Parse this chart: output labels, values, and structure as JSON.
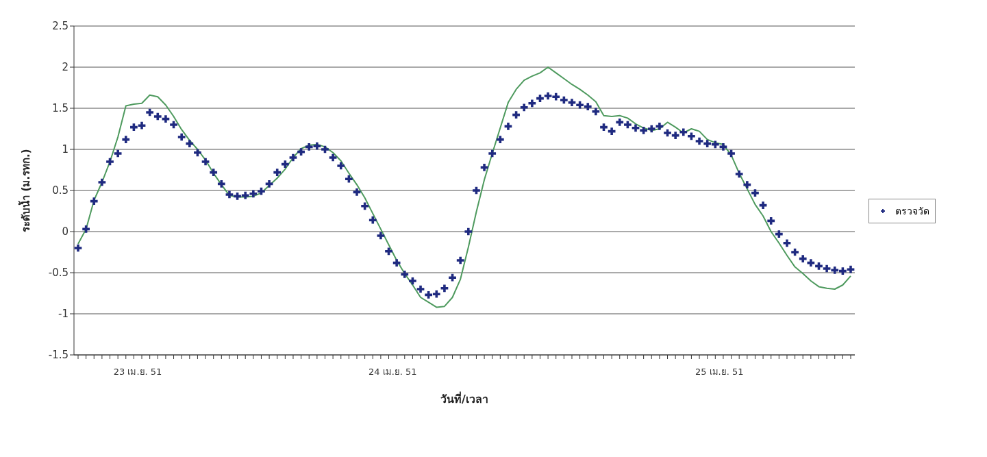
{
  "chart_data": {
    "type": "line",
    "xlabel": "วันที่/เวลา",
    "ylabel": "ระดับน้ำ (ม.รทก.)",
    "annotations": [
      "23 เม.ย. 51",
      "24 เม.ย. 51",
      "25 เม.ย. 51"
    ],
    "ylim": [
      -1.5,
      2.5
    ],
    "yticks": [
      -1.5,
      -1,
      -0.5,
      0,
      0.5,
      1,
      1.5,
      2,
      2.5
    ],
    "grid": "y",
    "legend": "right",
    "categories": [
      null,
      null,
      null,
      null,
      null,
      null,
      null,
      null,
      null,
      null,
      null,
      null,
      null,
      null,
      null,
      null,
      null,
      null,
      null,
      null,
      null,
      null,
      null,
      null,
      null,
      null,
      null,
      null,
      null,
      null,
      null,
      null,
      null,
      null,
      null,
      null,
      null,
      null,
      null,
      null,
      null,
      null,
      null,
      null,
      null,
      null,
      null,
      null,
      null,
      null,
      null,
      null,
      null,
      null,
      null,
      null,
      null,
      null,
      null,
      null,
      null,
      null,
      null,
      null,
      null,
      null,
      null,
      null,
      null,
      null,
      null,
      null,
      null,
      null,
      null,
      null,
      null,
      null,
      null,
      null,
      null,
      null,
      null,
      null,
      null,
      null,
      null,
      null,
      null,
      null,
      null,
      null,
      null,
      null,
      null,
      null,
      null,
      null
    ],
    "series": [
      {
        "type": "scatter",
        "name": "ตรวจวัด",
        "color": "#1f2a80",
        "marker": "cross",
        "values": [
          -0.2,
          0.03,
          0.37,
          0.6,
          0.85,
          0.95,
          1.12,
          1.27,
          1.29,
          1.45,
          1.4,
          1.37,
          1.3,
          1.15,
          1.07,
          0.96,
          0.85,
          0.72,
          0.58,
          0.45,
          0.43,
          0.44,
          0.46,
          0.49,
          0.58,
          0.72,
          0.82,
          0.9,
          0.97,
          1.03,
          1.04,
          1,
          0.9,
          0.8,
          0.64,
          0.48,
          0.31,
          0.14,
          -0.05,
          -0.24,
          -0.38,
          -0.52,
          -0.6,
          -0.7,
          -0.77,
          -0.76,
          -0.69,
          -0.56,
          -0.35,
          0,
          0.5,
          0.78,
          0.95,
          1.12,
          1.28,
          1.42,
          1.51,
          1.56,
          1.62,
          1.65,
          1.64,
          1.6,
          1.57,
          1.54,
          1.52,
          1.46,
          1.27,
          1.22,
          1.33,
          1.3,
          1.26,
          1.23,
          1.25,
          1.28,
          1.2,
          1.17,
          1.21,
          1.16,
          1.1,
          1.07,
          1.06,
          1.03,
          0.95,
          0.7,
          0.57,
          0.47,
          0.32,
          0.13,
          -0.03,
          -0.14,
          -0.25,
          -0.33,
          -0.38,
          -0.42,
          -0.45,
          -0.47,
          -0.48,
          -0.46
        ]
      },
      {
        "color": "#4e9a5e",
        "marker": "none",
        "line_style": "solid",
        "values": [
          -0.15,
          0.03,
          0.38,
          0.6,
          0.85,
          1.15,
          1.53,
          1.55,
          1.56,
          1.66,
          1.64,
          1.54,
          1.4,
          1.24,
          1.11,
          1,
          0.87,
          0.71,
          0.57,
          0.44,
          0.42,
          0.42,
          0.43,
          0.47,
          0.56,
          0.65,
          0.76,
          0.9,
          1.01,
          1.05,
          1.06,
          1.03,
          0.96,
          0.86,
          0.71,
          0.57,
          0.41,
          0.22,
          0.03,
          -0.16,
          -0.35,
          -0.51,
          -0.65,
          -0.8,
          -0.86,
          -0.92,
          -0.91,
          -0.8,
          -0.58,
          -0.19,
          0.24,
          0.63,
          0.95,
          1.26,
          1.57,
          1.73,
          1.84,
          1.89,
          1.93,
          2,
          1.93,
          1.86,
          1.79,
          1.73,
          1.66,
          1.58,
          1.41,
          1.4,
          1.41,
          1.38,
          1.31,
          1.26,
          1.23,
          1.25,
          1.33,
          1.27,
          1.2,
          1.25,
          1.22,
          1.12,
          1.08,
          1.06,
          0.93,
          0.71,
          0.52,
          0.33,
          0.19,
          0,
          -0.14,
          -0.29,
          -0.43,
          -0.51,
          -0.6,
          -0.67,
          -0.69,
          -0.7,
          -0.65,
          -0.54
        ]
      }
    ]
  }
}
